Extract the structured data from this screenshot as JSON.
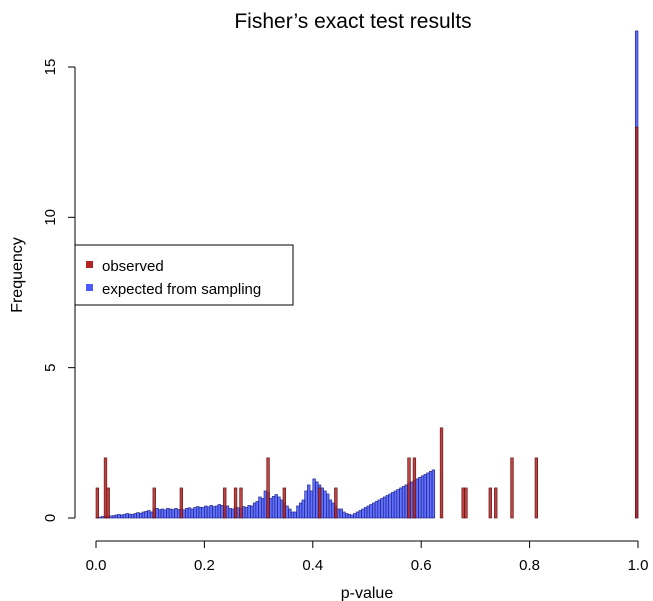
{
  "chart_data": {
    "type": "bar",
    "title": "Fisher’s exact test results",
    "xlabel": "p-value",
    "ylabel": "Frequency",
    "xlim": [
      0,
      1
    ],
    "ylim": [
      0,
      16.2
    ],
    "bin_width": 0.005,
    "x_ticks": [
      "0.0",
      "0.2",
      "0.4",
      "0.6",
      "0.8",
      "1.0"
    ],
    "y_ticks": [
      "0",
      "5",
      "10",
      "15"
    ],
    "legend_position": "left-middle",
    "series": [
      {
        "name": "observed",
        "color": "#b22222",
        "bins": [
          {
            "x": 0.0,
            "y": 1
          },
          {
            "x": 0.015,
            "y": 2
          },
          {
            "x": 0.02,
            "y": 1
          },
          {
            "x": 0.105,
            "y": 1
          },
          {
            "x": 0.155,
            "y": 1
          },
          {
            "x": 0.235,
            "y": 1
          },
          {
            "x": 0.255,
            "y": 1
          },
          {
            "x": 0.265,
            "y": 1
          },
          {
            "x": 0.315,
            "y": 2
          },
          {
            "x": 0.345,
            "y": 1
          },
          {
            "x": 0.41,
            "y": 1
          },
          {
            "x": 0.44,
            "y": 1
          },
          {
            "x": 0.575,
            "y": 2
          },
          {
            "x": 0.585,
            "y": 2
          },
          {
            "x": 0.635,
            "y": 3
          },
          {
            "x": 0.675,
            "y": 1
          },
          {
            "x": 0.68,
            "y": 1
          },
          {
            "x": 0.725,
            "y": 1
          },
          {
            "x": 0.735,
            "y": 1
          },
          {
            "x": 0.765,
            "y": 2
          },
          {
            "x": 0.81,
            "y": 2
          },
          {
            "x": 0.995,
            "y": 13
          }
        ]
      },
      {
        "name": "expected from sampling",
        "color": "#4a5cff",
        "values": [
          0.02,
          0.03,
          0.05,
          0.06,
          0.05,
          0.07,
          0.08,
          0.1,
          0.12,
          0.1,
          0.12,
          0.15,
          0.13,
          0.12,
          0.15,
          0.18,
          0.16,
          0.2,
          0.22,
          0.25,
          0.2,
          0.3,
          0.32,
          0.28,
          0.3,
          0.27,
          0.32,
          0.3,
          0.28,
          0.32,
          0.28,
          0.3,
          0.27,
          0.32,
          0.34,
          0.3,
          0.35,
          0.38,
          0.36,
          0.35,
          0.4,
          0.37,
          0.42,
          0.38,
          0.4,
          0.45,
          0.42,
          0.38,
          0.4,
          0.32,
          0.3,
          0.36,
          0.34,
          0.32,
          0.38,
          0.35,
          0.42,
          0.4,
          0.5,
          0.55,
          0.7,
          0.65,
          0.9,
          0.85,
          0.65,
          0.72,
          0.78,
          0.7,
          0.6,
          0.5,
          0.4,
          0.3,
          0.2,
          0.2,
          0.4,
          0.5,
          0.6,
          0.9,
          1.1,
          0.9,
          1.3,
          1.2,
          1.1,
          1.0,
          0.9,
          0.8,
          0.6,
          0.5,
          0.4,
          0.3,
          0.3,
          0.2,
          0.15,
          0.12,
          0.1,
          0.15,
          0.2,
          0.25,
          0.3,
          0.35,
          0.4,
          0.45,
          0.5,
          0.55,
          0.6,
          0.65,
          0.7,
          0.75,
          0.8,
          0.85,
          0.9,
          0.95,
          1.0,
          1.05,
          1.1,
          1.15,
          1.2,
          1.25,
          1.3,
          1.35,
          1.4,
          1.45,
          1.5,
          1.55,
          1.6
        ],
        "last_bin": {
          "x": 0.995,
          "y": 16.2
        }
      }
    ]
  }
}
